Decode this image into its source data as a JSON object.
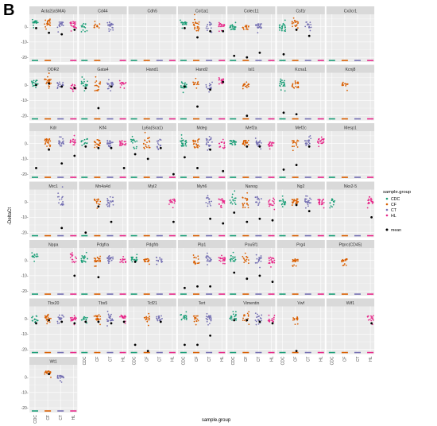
{
  "panel_label": "B",
  "colors": {
    "CDC": "#1b9e77",
    "CF": "#d95f02",
    "CT": "#7570b3",
    "HL": "#e7298a",
    "mean": "#000000",
    "panel_bg": "#ebebeb",
    "grid": "#ffffff",
    "strip_bg": "#d9d9d9"
  },
  "chart_data": {
    "type": "scatter",
    "xlabel": "sample.group",
    "ylabel": "-DeltaCt",
    "categories": [
      "CDC",
      "CF",
      "CT",
      "HL"
    ],
    "ylim": [
      -23,
      8
    ],
    "yticks": [
      0,
      -10,
      -20
    ],
    "ytick_labels": [
      "0-",
      "-10-",
      "-20-"
    ],
    "legend": {
      "position": "right",
      "title": "sample.group",
      "items": [
        "CDC",
        "CF",
        "CT",
        "HL"
      ],
      "mean_label": "mean"
    },
    "genes": [
      {
        "name": "Acta2(aSMA)",
        "clusters": [
          [
            2,
            4
          ],
          [
            1,
            4
          ],
          [
            -1,
            3
          ],
          [
            -1,
            3
          ]
        ],
        "floor": [
          1,
          1,
          0,
          1
        ],
        "mean": [
          -1,
          -4,
          -5,
          -2
        ]
      },
      {
        "name": "Cd44",
        "clusters": [
          [
            -1,
            2
          ],
          [
            -1,
            2
          ],
          [
            0,
            3
          ],
          null
        ],
        "floor": [
          1,
          1,
          0,
          1
        ],
        "mean": [
          null,
          null,
          null,
          null
        ]
      },
      {
        "name": "Cdh5",
        "clusters": [
          null,
          null,
          null,
          null
        ],
        "floor": [
          1,
          1,
          1,
          1
        ],
        "mean": [
          null,
          null,
          null,
          null
        ]
      },
      {
        "name": "Col1a1",
        "clusters": [
          [
            1,
            3
          ],
          [
            -3,
            4
          ],
          [
            -1,
            3
          ],
          [
            0,
            2
          ]
        ],
        "floor": [
          1,
          1,
          1,
          1
        ],
        "mean": [
          -1,
          -7,
          -3,
          -3
        ]
      },
      {
        "name": "Colec11",
        "clusters": [
          [
            -2,
            1
          ],
          [
            -2,
            1
          ],
          [
            -1,
            2
          ],
          null
        ],
        "floor": [
          1,
          1,
          1,
          1
        ],
        "mean": [
          -19,
          -20,
          -17,
          null
        ]
      },
      {
        "name": "Csf1r",
        "clusters": [
          [
            -3,
            2
          ],
          [
            0,
            4
          ],
          [
            0,
            3
          ],
          null
        ],
        "floor": [
          1,
          1,
          1,
          1
        ],
        "mean": [
          -18,
          -2,
          -6,
          null
        ]
      },
      {
        "name": "Cx3cr1",
        "clusters": [
          null,
          null,
          null,
          null
        ],
        "floor": [
          1,
          1,
          1,
          1
        ],
        "mean": [
          null,
          null,
          null,
          null
        ]
      },
      {
        "name": "DDR2",
        "clusters": [
          [
            -1,
            3
          ],
          [
            -1,
            5
          ],
          [
            -2,
            2
          ],
          [
            -3,
            1
          ]
        ],
        "floor": [
          1,
          1,
          1,
          1
        ],
        "mean": [
          0,
          1,
          -1,
          -2
        ]
      },
      {
        "name": "Gata4",
        "clusters": [
          [
            -1,
            3
          ],
          [
            -4,
            3
          ],
          [
            -1,
            2
          ],
          [
            0,
            2
          ]
        ],
        "floor": [
          1,
          1,
          1,
          1
        ],
        "mean": [
          -2,
          -15,
          -1,
          null
        ]
      },
      {
        "name": "Hand1",
        "clusters": [
          null,
          null,
          null,
          null
        ],
        "floor": [
          1,
          1,
          1,
          1
        ],
        "mean": [
          null,
          null,
          null,
          null
        ]
      },
      {
        "name": "Hand2",
        "clusters": [
          [
            -2,
            2
          ],
          [
            0,
            3
          ],
          [
            -3,
            1
          ],
          [
            1,
            4
          ]
        ],
        "floor": [
          1,
          1,
          1,
          1
        ],
        "mean": [
          -1,
          -14,
          -3,
          2
        ]
      },
      {
        "name": "Isl1",
        "clusters": [
          null,
          [
            -1,
            1
          ],
          null,
          null
        ],
        "floor": [
          1,
          1,
          1,
          1
        ],
        "mean": [
          null,
          -20,
          null,
          null
        ]
      },
      {
        "name": "Kcna1",
        "clusters": [
          [
            -1,
            4
          ],
          [
            -2,
            2
          ],
          null,
          null
        ],
        "floor": [
          1,
          1,
          1,
          1
        ],
        "mean": [
          -18,
          -19,
          null,
          null
        ]
      },
      {
        "name": "Kcnj8",
        "clusters": [
          null,
          [
            -1,
            1
          ],
          null,
          null
        ],
        "floor": [
          1,
          1,
          1,
          1
        ],
        "mean": [
          null,
          null,
          null,
          null
        ]
      },
      {
        "name": "Kdr",
        "clusters": [
          null,
          [
            -2,
            3
          ],
          [
            -2,
            2
          ],
          [
            -1,
            3
          ]
        ],
        "floor": [
          1,
          1,
          1,
          1
        ],
        "mean": [
          -16,
          -4,
          -13,
          -8
        ]
      },
      {
        "name": "Klf4",
        "clusters": [
          [
            -1,
            3
          ],
          [
            -2,
            2
          ],
          [
            -2,
            2
          ],
          [
            -2,
            2
          ]
        ],
        "floor": [
          1,
          1,
          1,
          1
        ],
        "mean": [
          -2,
          -3,
          -3,
          -16
        ]
      },
      {
        "name": "Ly6a(Sca1)",
        "clusters": [
          [
            -4,
            3
          ],
          [
            -4,
            4
          ],
          [
            -4,
            3
          ],
          null
        ],
        "floor": [
          1,
          1,
          1,
          1
        ],
        "mean": [
          -7,
          -10,
          -3,
          -20
        ]
      },
      {
        "name": "Mdeg",
        "clusters": [
          [
            -2,
            3
          ],
          [
            -3,
            3
          ],
          [
            -2,
            3
          ],
          [
            -3,
            1
          ]
        ],
        "floor": [
          1,
          1,
          1,
          1
        ],
        "mean": [
          -9,
          -16,
          -4,
          -18
        ]
      },
      {
        "name": "Mef2a",
        "clusters": [
          [
            -1,
            2
          ],
          [
            -1,
            2
          ],
          [
            -2,
            2
          ],
          [
            -2,
            1
          ]
        ],
        "floor": [
          1,
          1,
          1,
          1
        ],
        "mean": [
          null,
          -2,
          -2,
          null
        ]
      },
      {
        "name": "Mef2c",
        "clusters": [
          null,
          [
            -2,
            2
          ],
          [
            -1,
            3
          ],
          [
            0,
            3
          ]
        ],
        "floor": [
          1,
          1,
          1,
          1
        ],
        "mean": [
          -17,
          -14,
          -2,
          null
        ]
      },
      {
        "name": "Mesp1",
        "clusters": [
          null,
          null,
          null,
          null
        ],
        "floor": [
          1,
          1,
          1,
          1
        ],
        "mean": [
          null,
          null,
          null,
          null
        ]
      },
      {
        "name": "Mrc1",
        "clusters": [
          null,
          null,
          [
            -3,
            6
          ],
          null
        ],
        "floor": [
          1,
          1,
          1,
          1
        ],
        "mean": [
          null,
          null,
          -17,
          null
        ]
      },
      {
        "name": "Mn4a4d",
        "clusters": [
          null,
          [
            -3,
            2
          ],
          [
            -2,
            3
          ],
          null
        ],
        "floor": [
          1,
          1,
          1,
          1
        ],
        "mean": [
          -20,
          -3,
          -13,
          null
        ]
      },
      {
        "name": "Myl2",
        "clusters": [
          null,
          null,
          null,
          [
            -1,
            2
          ]
        ],
        "floor": [
          1,
          1,
          1,
          1
        ],
        "mean": [
          null,
          null,
          null,
          -13
        ]
      },
      {
        "name": "Myh6",
        "clusters": [
          null,
          null,
          [
            -3,
            3
          ],
          [
            -1,
            2
          ]
        ],
        "floor": [
          1,
          1,
          1,
          1
        ],
        "mean": [
          null,
          null,
          -11,
          -14
        ]
      },
      {
        "name": "Nanog",
        "clusters": [
          [
            -2,
            4
          ],
          [
            -4,
            3
          ],
          [
            -2,
            3
          ],
          [
            -3,
            2
          ]
        ],
        "floor": [
          1,
          1,
          1,
          1
        ],
        "mean": [
          -7,
          -13,
          -11,
          -12
        ]
      },
      {
        "name": "Ng2",
        "clusters": [
          [
            -2,
            2
          ],
          [
            -1,
            2
          ],
          [
            -1,
            2
          ],
          [
            -1,
            2
          ]
        ],
        "floor": [
          1,
          1,
          1,
          1
        ],
        "mean": [
          null,
          -2,
          -6,
          null
        ]
      },
      {
        "name": "Nkx2-5",
        "clusters": [
          [
            -1,
            2
          ],
          null,
          null,
          [
            -1,
            2
          ]
        ],
        "floor": [
          1,
          1,
          1,
          1
        ],
        "mean": [
          null,
          null,
          null,
          -10
        ]
      },
      {
        "name": "Nppa",
        "clusters": [
          [
            2,
            4
          ],
          null,
          null,
          [
            -2,
            5
          ]
        ],
        "floor": [
          1,
          1,
          1,
          1
        ],
        "mean": [
          null,
          null,
          null,
          -10
        ]
      },
      {
        "name": "Pdgfra",
        "clusters": [
          [
            -1,
            3
          ],
          [
            -1,
            2
          ],
          [
            -1,
            3
          ],
          [
            -2,
            1
          ]
        ],
        "floor": [
          1,
          1,
          1,
          1
        ],
        "mean": [
          null,
          -11,
          null,
          null
        ]
      },
      {
        "name": "Pdgfrb",
        "clusters": [
          [
            -1,
            2
          ],
          [
            -1,
            1
          ],
          [
            -1,
            2
          ],
          null
        ],
        "floor": [
          1,
          1,
          1,
          1
        ],
        "mean": [
          -1,
          null,
          null,
          null
        ]
      },
      {
        "name": "Plp1",
        "clusters": [
          null,
          [
            -2,
            2
          ],
          [
            -1,
            3
          ],
          [
            -1,
            2
          ]
        ],
        "floor": [
          1,
          1,
          1,
          1
        ],
        "mean": [
          -18,
          -17,
          -17,
          null
        ]
      },
      {
        "name": "Pou5f1",
        "clusters": [
          [
            -1,
            3
          ],
          [
            -2,
            3
          ],
          [
            -2,
            2
          ],
          [
            -2,
            2
          ]
        ],
        "floor": [
          1,
          1,
          1,
          1
        ],
        "mean": [
          -8,
          -12,
          -10,
          -14
        ]
      },
      {
        "name": "Prg4",
        "clusters": [
          null,
          [
            -1,
            1
          ],
          null,
          null
        ],
        "floor": [
          1,
          1,
          1,
          1
        ],
        "mean": [
          null,
          null,
          null,
          null
        ]
      },
      {
        "name": "Ptprc(CD45)",
        "clusters": [
          null,
          [
            -1,
            1
          ],
          null,
          null
        ],
        "floor": [
          1,
          1,
          1,
          1
        ],
        "mean": [
          null,
          null,
          null,
          null
        ]
      },
      {
        "name": "Tbx20",
        "clusters": [
          [
            -2,
            2
          ],
          [
            -1,
            2
          ],
          [
            -1,
            3
          ],
          [
            -2,
            1
          ]
        ],
        "floor": [
          1,
          1,
          1,
          1
        ],
        "mean": [
          -3,
          -1,
          -2,
          -3
        ]
      },
      {
        "name": "Tbx5",
        "clusters": [
          [
            -1,
            2
          ],
          [
            -1,
            2
          ],
          [
            -2,
            3
          ],
          [
            0,
            2
          ]
        ],
        "floor": [
          1,
          1,
          1,
          1
        ],
        "mean": [
          -2,
          -2,
          -3,
          -2
        ]
      },
      {
        "name": "Tcf21",
        "clusters": [
          null,
          [
            -2,
            2
          ],
          [
            -2,
            2
          ],
          null
        ],
        "floor": [
          1,
          1,
          1,
          1
        ],
        "mean": [
          -17,
          -21,
          -2,
          null
        ]
      },
      {
        "name": "Tert",
        "clusters": [
          [
            -1,
            3
          ],
          [
            -2,
            2
          ],
          [
            -2,
            2
          ],
          null
        ],
        "floor": [
          1,
          1,
          1,
          1
        ],
        "mean": [
          -17,
          -17,
          -11,
          null
        ]
      },
      {
        "name": "Vimentin",
        "clusters": [
          [
            -1,
            3
          ],
          [
            -2,
            3
          ],
          [
            -2,
            3
          ],
          [
            -2,
            1
          ]
        ],
        "floor": [
          1,
          1,
          1,
          1
        ],
        "mean": [
          -1,
          -1,
          -2,
          -3
        ]
      },
      {
        "name": "Vwf",
        "clusters": [
          null,
          [
            -1,
            1
          ],
          null,
          null
        ],
        "floor": [
          1,
          1,
          1,
          1
        ],
        "mean": [
          null,
          -21,
          null,
          null
        ]
      },
      {
        "name": "Wif1",
        "clusters": [
          null,
          null,
          null,
          [
            -3,
            2
          ]
        ],
        "floor": [
          1,
          1,
          1,
          1
        ],
        "mean": [
          null,
          null,
          null,
          -3
        ]
      },
      {
        "name": "Wt1",
        "clusters": [
          null,
          [
            2,
            4
          ],
          [
            -1,
            1
          ],
          null
        ],
        "floor": [
          1,
          1,
          1,
          1
        ],
        "mean": [
          null,
          2,
          null,
          null
        ]
      }
    ]
  }
}
